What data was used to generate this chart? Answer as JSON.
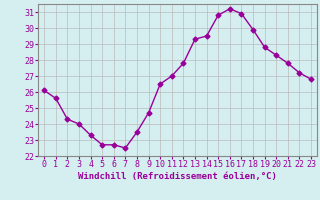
{
  "x": [
    0,
    1,
    2,
    3,
    4,
    5,
    6,
    7,
    8,
    9,
    10,
    11,
    12,
    13,
    14,
    15,
    16,
    17,
    18,
    19,
    20,
    21,
    22,
    23
  ],
  "y": [
    26.1,
    25.6,
    24.3,
    24.0,
    23.3,
    22.7,
    22.7,
    22.5,
    23.5,
    24.7,
    26.5,
    27.0,
    27.8,
    29.3,
    29.5,
    30.8,
    31.2,
    30.9,
    29.9,
    28.8,
    28.3,
    27.8,
    27.2,
    26.8
  ],
  "line_color": "#990099",
  "marker": "D",
  "markersize": 2.5,
  "linewidth": 1.0,
  "xlabel": "Windchill (Refroidissement éolien,°C)",
  "ylabel": "",
  "xlim": [
    -0.5,
    23.5
  ],
  "ylim": [
    22,
    31.5
  ],
  "yticks": [
    22,
    23,
    24,
    25,
    26,
    27,
    28,
    29,
    30,
    31
  ],
  "xticks": [
    0,
    1,
    2,
    3,
    4,
    5,
    6,
    7,
    8,
    9,
    10,
    11,
    12,
    13,
    14,
    15,
    16,
    17,
    18,
    19,
    20,
    21,
    22,
    23
  ],
  "bg_color": "#d5eef0",
  "grid_color": "#bbbbbb",
  "spine_color": "#888888",
  "xlabel_fontsize": 6.5,
  "tick_fontsize": 6.0
}
